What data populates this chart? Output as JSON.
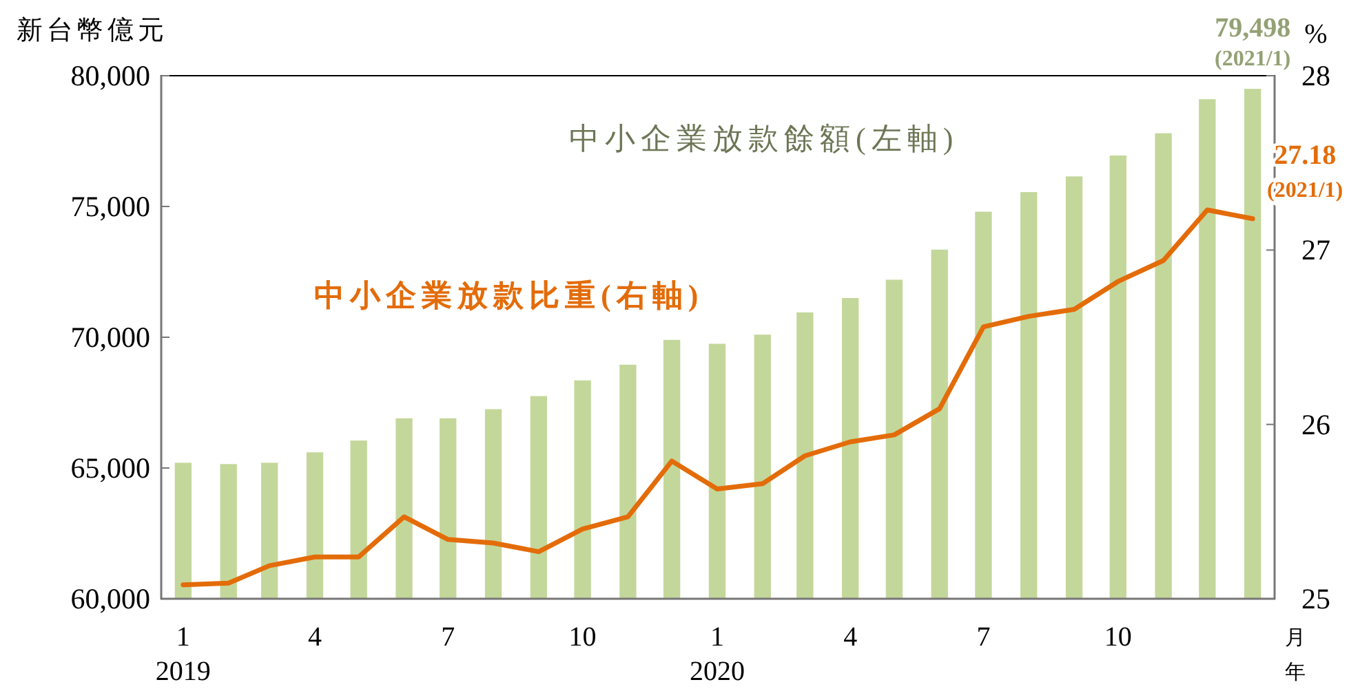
{
  "chart_data": {
    "type": "bar",
    "x": [
      "2019-01",
      "2019-02",
      "2019-03",
      "2019-04",
      "2019-05",
      "2019-06",
      "2019-07",
      "2019-08",
      "2019-09",
      "2019-10",
      "2019-11",
      "2019-12",
      "2020-01",
      "2020-02",
      "2020-03",
      "2020-04",
      "2020-05",
      "2020-06",
      "2020-07",
      "2020-08",
      "2020-09",
      "2020-10",
      "2020-11",
      "2020-12",
      "2021-01"
    ],
    "series": [
      {
        "name": "中小企業放款餘額(左軸)",
        "color": "#c4d79b",
        "values": [
          65200,
          65150,
          65200,
          65600,
          66050,
          66900,
          66900,
          67250,
          67750,
          68350,
          68950,
          69900,
          69750,
          70100,
          70950,
          71500,
          72200,
          73350,
          74800,
          75550,
          76150,
          76950,
          77800,
          79100,
          79498
        ],
        "value_labels": [
          null,
          null,
          null,
          null,
          null,
          null,
          null,
          null,
          null,
          null,
          null,
          null,
          null,
          null,
          null,
          null,
          null,
          null,
          null,
          null,
          null,
          null,
          null,
          null,
          "79,498 (2021/1)"
        ]
      },
      {
        "name": "中小企業放款比重(右軸)",
        "type": "line",
        "axis": "y2",
        "color": "#e36c09",
        "values": [
          25.08,
          25.09,
          25.19,
          25.24,
          25.24,
          25.47,
          25.34,
          25.32,
          25.27,
          25.4,
          25.47,
          25.79,
          25.63,
          25.66,
          25.82,
          25.9,
          25.94,
          26.09,
          26.56,
          26.62,
          26.66,
          26.82,
          26.94,
          27.23,
          27.18
        ],
        "value_labels": [
          null,
          null,
          null,
          null,
          null,
          null,
          null,
          null,
          null,
          null,
          null,
          null,
          null,
          null,
          null,
          null,
          null,
          null,
          null,
          null,
          null,
          null,
          null,
          null,
          "27.18 (2021/1)"
        ]
      }
    ],
    "ylabel": "新台幣億元",
    "y2label": "%",
    "xlabel": "月年",
    "xlim": [
      "2018-12-17",
      "2021-01-16"
    ],
    "xticks": [
      {
        "value": "2019-01",
        "label": "1"
      },
      {
        "value": "2019-04",
        "label": "4"
      },
      {
        "value": "2019-07",
        "label": "7"
      },
      {
        "value": "2019-10",
        "label": "10"
      },
      {
        "value": "2020-01",
        "label": "1"
      },
      {
        "value": "2020-04",
        "label": "4"
      },
      {
        "value": "2020-07",
        "label": "7"
      },
      {
        "value": "2020-10",
        "label": "10"
      }
    ],
    "ylim": [
      60000,
      80000
    ],
    "yticks": [
      {
        "value": 60000,
        "label": "60,000"
      },
      {
        "value": 65000,
        "label": "65,000"
      },
      {
        "value": 70000,
        "label": "70,000"
      },
      {
        "value": 75000,
        "label": "75,000"
      },
      {
        "value": 80000,
        "label": "80,000"
      }
    ],
    "y2lim": [
      25,
      28
    ],
    "y2ticks": [
      25,
      26,
      27,
      28
    ],
    "annotations": [
      "2019",
      "2020"
    ],
    "grid": false,
    "marker": "none",
    "line_style": "solid"
  }
}
